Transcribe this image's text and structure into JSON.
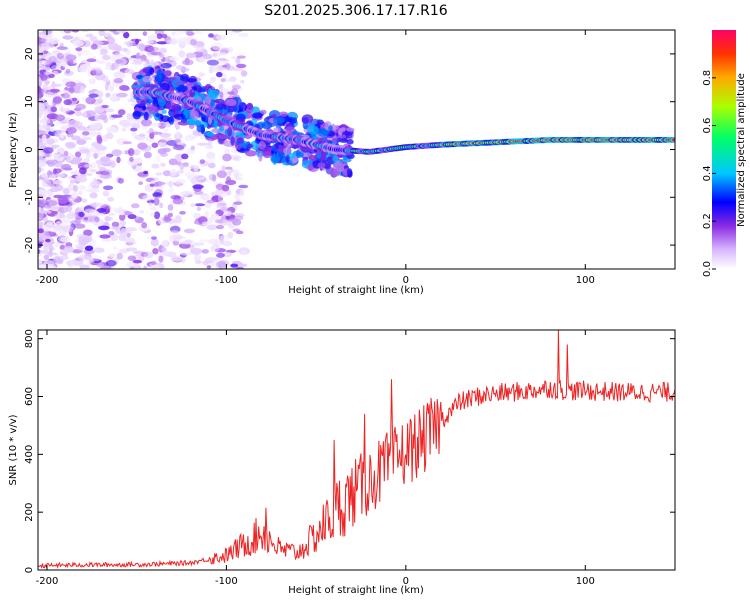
{
  "title": "S201.2025.306.17.17.R16",
  "chart_data": [
    {
      "type": "heatmap",
      "title": "S201.2025.306.17.17.R16",
      "xlabel": "Height of straight line (km)",
      "ylabel": "Frequency (Hz)",
      "xlim": [
        -205,
        150
      ],
      "ylim": [
        -25,
        25
      ],
      "xticks": [
        -200,
        -100,
        0,
        100
      ],
      "xtick_labels": [
        "-200",
        "-100",
        "0",
        "100"
      ],
      "yticks": [
        -20,
        -10,
        0,
        10,
        20
      ],
      "ytick_labels": [
        "-20",
        "-10",
        "0",
        "10",
        "20"
      ],
      "colorbar": {
        "label": "Normalized spectral amplitude",
        "ticks": [
          0.0,
          0.2,
          0.4,
          0.6,
          0.8
        ],
        "tick_labels": [
          "0.0",
          "0.2",
          "0.4",
          "0.6",
          "0.8"
        ],
        "range": [
          0,
          1
        ]
      },
      "ridge": {
        "description_points_x_km": [
          -140,
          -120,
          -100,
          -80,
          -60,
          -40,
          -20,
          0,
          20,
          50,
          80,
          100,
          150
        ],
        "frequency_hz": [
          12,
          10,
          6,
          3,
          2,
          0,
          -0.5,
          0.5,
          1,
          1.5,
          2,
          2,
          2
        ]
      }
    },
    {
      "type": "line",
      "xlabel": "Height of straight line (km)",
      "ylabel": "SNR (10 * v/v)",
      "xlim": [
        -205,
        150
      ],
      "ylim": [
        0,
        830
      ],
      "xticks": [
        -200,
        -100,
        0,
        100
      ],
      "xtick_labels": [
        "-200",
        "-100",
        "0",
        "100"
      ],
      "yticks": [
        0,
        200,
        400,
        600,
        800
      ],
      "ytick_labels": [
        "0",
        "200",
        "400",
        "600",
        "800"
      ],
      "series": [
        {
          "name": "SNR",
          "color": "#ee2222",
          "x": [
            -205,
            -180,
            -160,
            -140,
            -120,
            -100,
            -90,
            -80,
            -70,
            -60,
            -50,
            -40,
            -30,
            -20,
            -10,
            0,
            10,
            20,
            30,
            40,
            50,
            60,
            70,
            80,
            90,
            100,
            120,
            140,
            150
          ],
          "y": [
            15,
            18,
            18,
            20,
            25,
            50,
            90,
            130,
            70,
            60,
            120,
            200,
            260,
            310,
            360,
            410,
            450,
            520,
            580,
            600,
            610,
            615,
            620,
            630,
            620,
            620,
            615,
            615,
            615
          ]
        }
      ],
      "spikes": [
        {
          "x": -78,
          "y": 215
        },
        {
          "x": -40,
          "y": 450
        },
        {
          "x": -23,
          "y": 540
        },
        {
          "x": -8,
          "y": 660
        },
        {
          "x": 85,
          "y": 830
        },
        {
          "x": 90,
          "y": 780
        }
      ]
    }
  ]
}
